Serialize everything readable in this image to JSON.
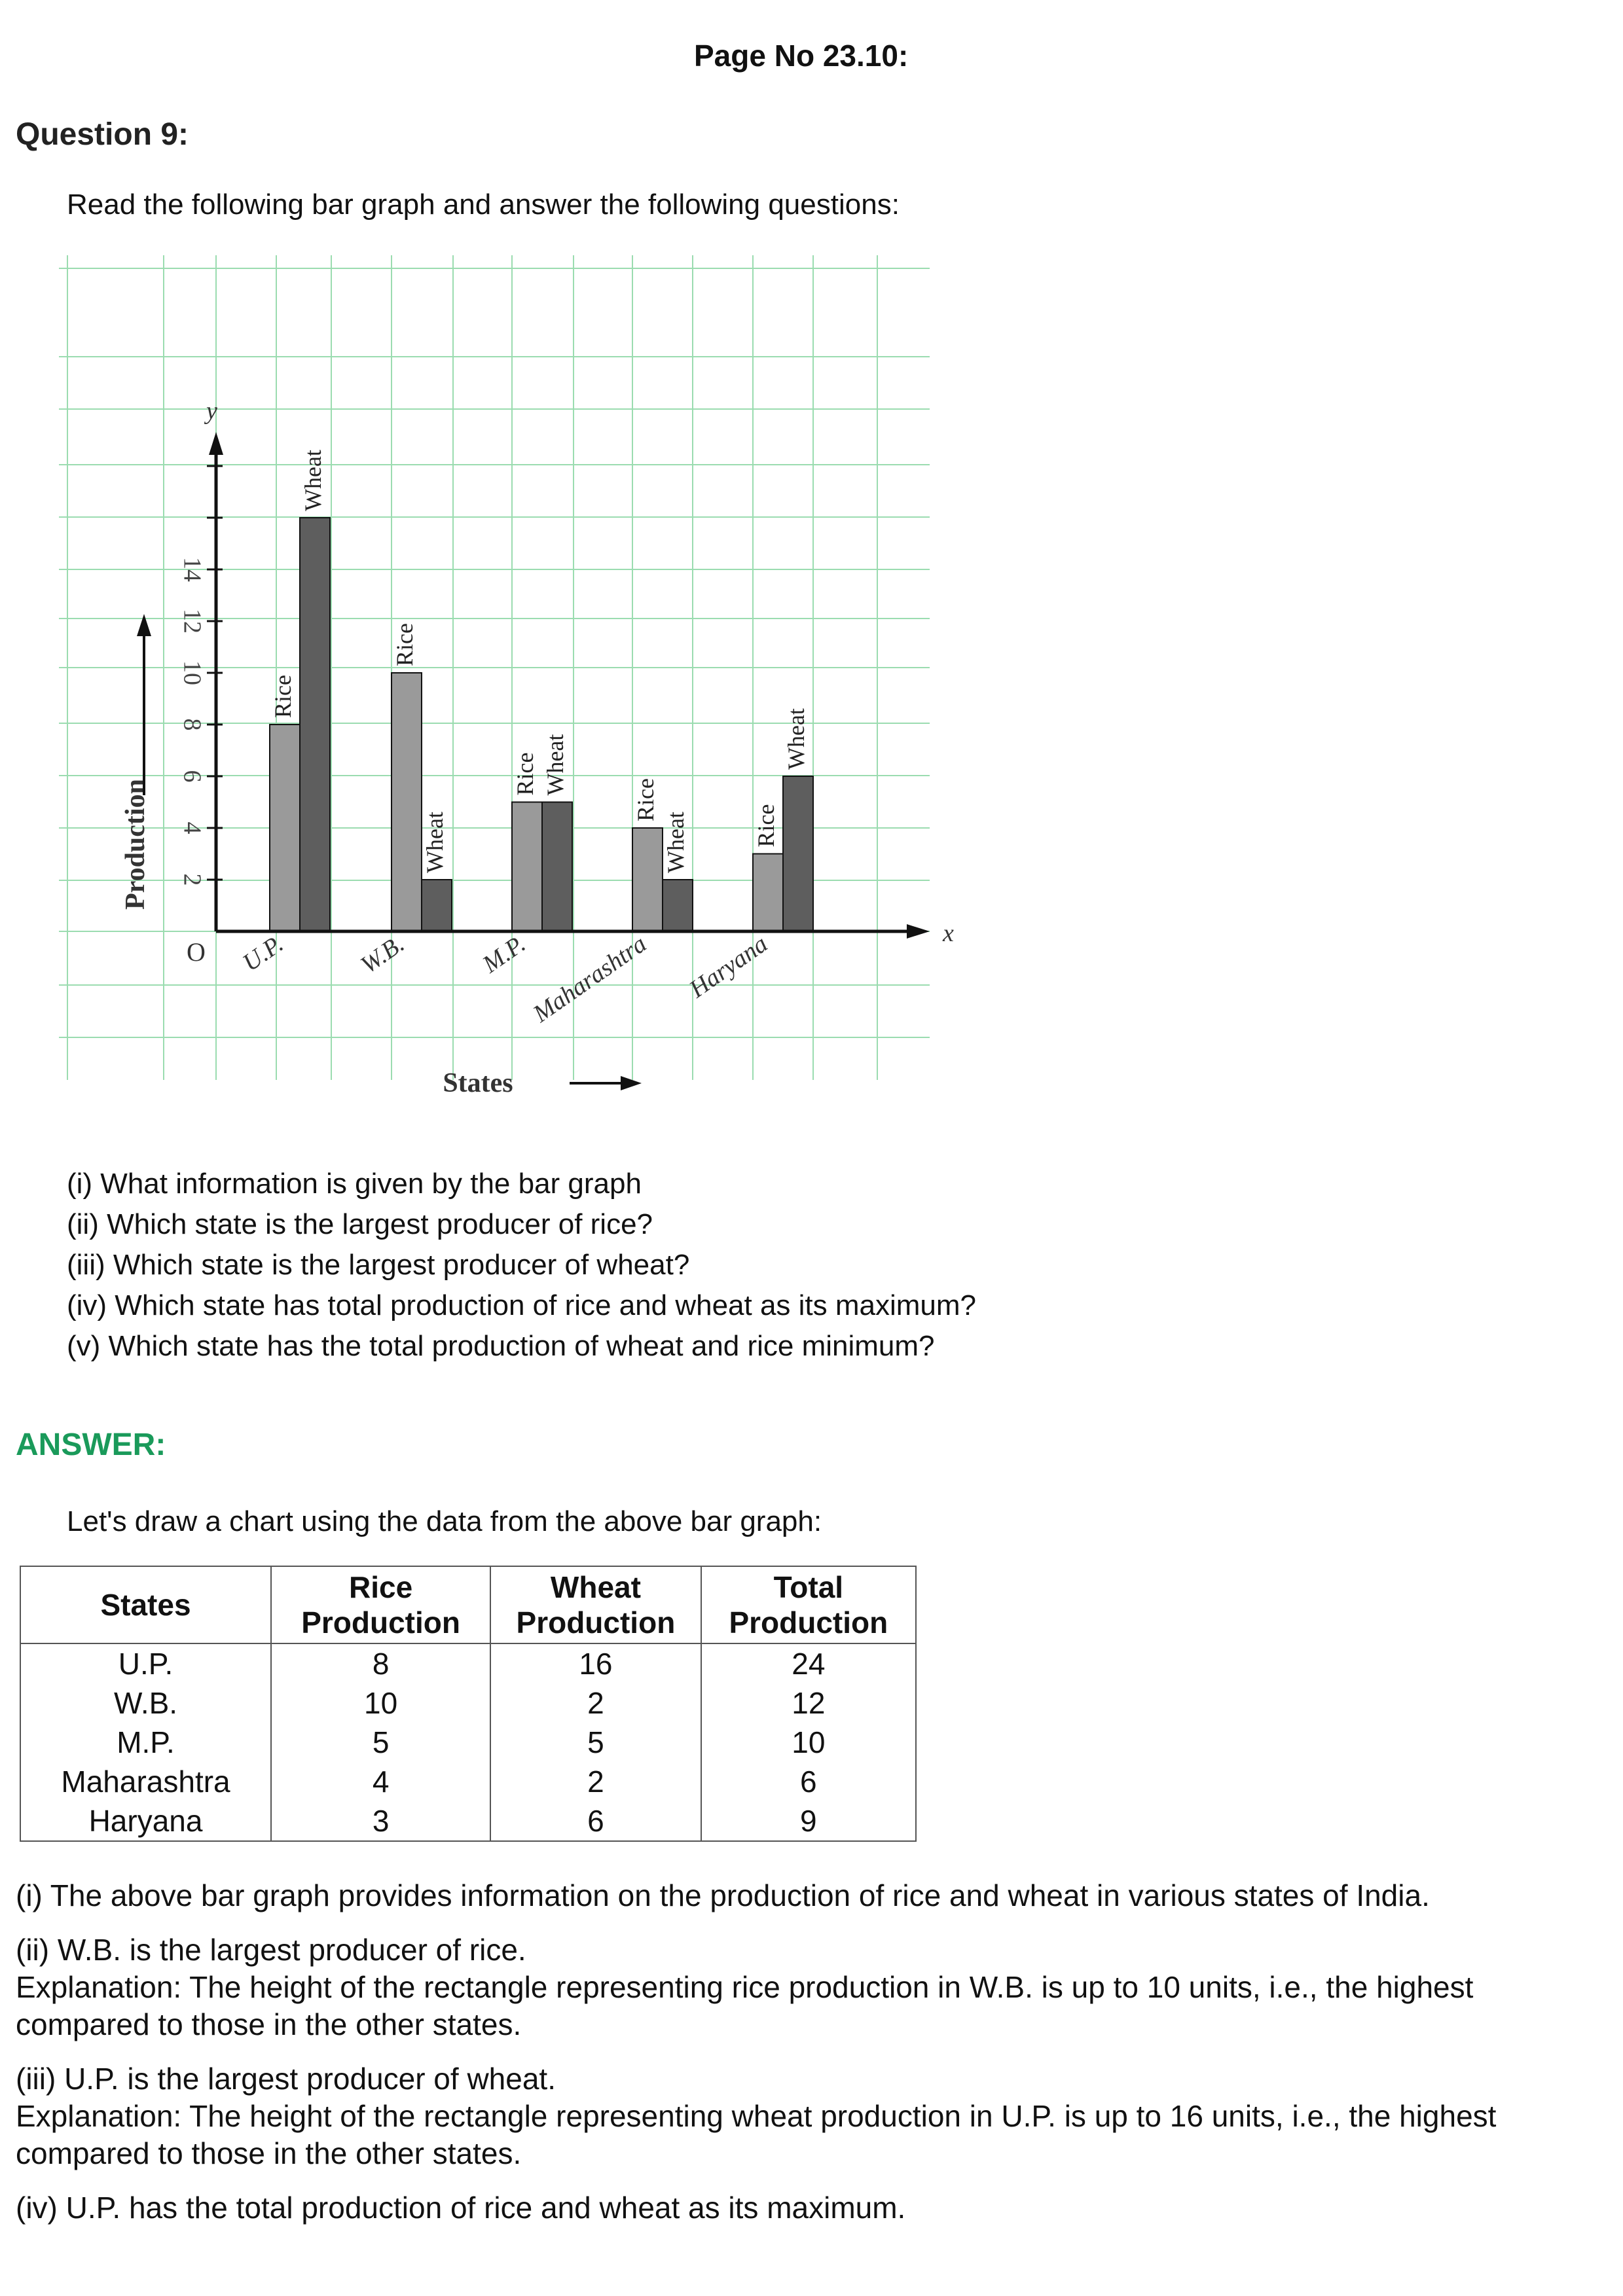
{
  "page_no": "Page No 23.10:",
  "question": {
    "title": "Question 9:",
    "intro": "Read the following bar graph and answer the following questions:",
    "items": [
      "(i) What information is given by the bar graph",
      "(ii) Which state is the largest producer of rice?",
      "(iii) Which state is the largest producer of wheat?",
      "(iv) Which state has total production of rice and wheat as its maximum?",
      "(v) Which state has the total production of wheat and rice minimum?"
    ]
  },
  "chart_data": {
    "type": "bar",
    "categories": [
      "U.P.",
      "W.B.",
      "M.P.",
      "Maharashtra",
      "Haryana"
    ],
    "series": [
      {
        "name": "Rice",
        "values": [
          8,
          10,
          5,
          4,
          3
        ],
        "color": "#9a9a9a"
      },
      {
        "name": "Wheat",
        "values": [
          16,
          2,
          5,
          2,
          6
        ],
        "color": "#5e5e5e"
      }
    ],
    "xlabel": "States",
    "ylabel": "Production",
    "x_axis_symbol": "x",
    "y_axis_symbol": "y",
    "origin_label": "O",
    "yticks": [
      2,
      4,
      6,
      8,
      10,
      12,
      14
    ],
    "ylim": [
      0,
      20
    ],
    "grid": true,
    "grid_color": "#9bdcb0"
  },
  "answer": {
    "title": "ANSWER:",
    "intro": "Let's draw a chart using the data from the above bar graph:",
    "table": {
      "headers": [
        {
          "line1": "States",
          "line2": ""
        },
        {
          "line1": "Rice",
          "line2": "Production"
        },
        {
          "line1": "Wheat",
          "line2": "Production"
        },
        {
          "line1": "Total",
          "line2": "Production"
        }
      ],
      "rows": [
        [
          "U.P.",
          "8",
          "16",
          "24"
        ],
        [
          "W.B.",
          "10",
          "2",
          "12"
        ],
        [
          "M.P.",
          "5",
          "5",
          "10"
        ],
        [
          "Maharashtra",
          "4",
          "2",
          "6"
        ],
        [
          "Haryana",
          "3",
          "6",
          "9"
        ]
      ]
    },
    "paragraphs": [
      [
        "(i) The above bar graph provides information on the production of rice and wheat in various states of India."
      ],
      [
        "(ii) W.B. is the largest producer of rice.",
        "Explanation: The height of the rectangle representing rice production in W.B. is up to 10 units, i.e., the highest compared to those in the other states."
      ],
      [
        "(iii) U.P. is the largest producer of wheat.",
        "Explanation: The height of the rectangle representing wheat production in U.P. is up to 16 units, i.e., the highest compared to those in the other states."
      ],
      [
        "(iv) U.P. has the total production of rice and wheat as its maximum."
      ]
    ]
  },
  "colors": {
    "answer_heading": "#1a9a5a"
  }
}
